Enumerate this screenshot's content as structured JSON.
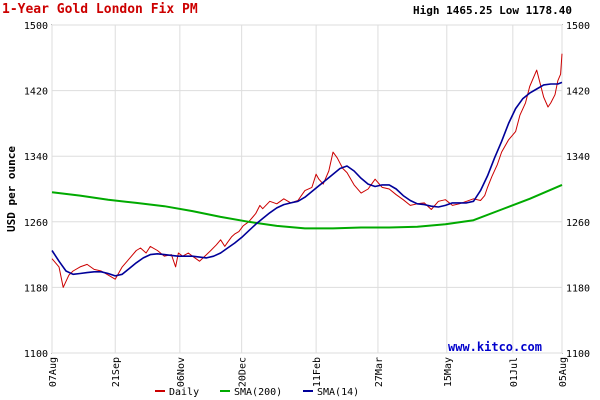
{
  "header": {
    "title": "1-Year Gold London Fix PM",
    "high_low": "High 1465.25 Low 1178.40"
  },
  "watermark": "www.kitco.com",
  "chart_data": {
    "type": "line",
    "title": "1-Year Gold London Fix PM",
    "xlabel": "",
    "ylabel": "USD per ounce",
    "ylim": [
      1100,
      1500
    ],
    "yticks": [
      1100,
      1180,
      1260,
      1340,
      1420,
      1500
    ],
    "x_ticks": [
      "07Aug",
      "21Sep",
      "06Nov",
      "20Dec",
      "11Feb",
      "27Mar",
      "15May",
      "01Jul",
      "05Aug"
    ],
    "x_tick_positions": [
      0,
      45,
      91,
      135,
      188,
      232,
      281,
      328,
      363
    ],
    "x_range": [
      0,
      363
    ],
    "grid": true,
    "legend_position": "bottom",
    "colors": {
      "Daily": "#cc0000",
      "SMA(200)": "#00aa00",
      "SMA(14)": "#000099"
    },
    "series": [
      {
        "name": "Daily",
        "x": [
          0,
          5,
          8,
          12,
          15,
          20,
          25,
          30,
          35,
          40,
          45,
          50,
          55,
          60,
          63,
          67,
          70,
          75,
          80,
          85,
          88,
          90,
          93,
          97,
          100,
          105,
          110,
          113,
          117,
          120,
          123,
          125,
          128,
          130,
          133,
          136,
          140,
          145,
          148,
          150,
          155,
          160,
          165,
          170,
          175,
          180,
          185,
          188,
          190,
          193,
          197,
          200,
          203,
          207,
          210,
          215,
          220,
          225,
          230,
          235,
          240,
          245,
          250,
          255,
          260,
          265,
          270,
          275,
          280,
          285,
          290,
          295,
          300,
          305,
          308,
          310,
          313,
          317,
          320,
          325,
          330,
          333,
          337,
          340,
          345,
          350,
          353,
          355,
          358,
          360,
          362,
          363
        ],
        "values": [
          1215,
          1205,
          1180,
          1195,
          1200,
          1205,
          1208,
          1202,
          1200,
          1195,
          1190,
          1205,
          1215,
          1225,
          1228,
          1222,
          1230,
          1225,
          1218,
          1220,
          1205,
          1222,
          1218,
          1222,
          1218,
          1212,
          1220,
          1225,
          1232,
          1238,
          1230,
          1235,
          1242,
          1245,
          1248,
          1255,
          1260,
          1270,
          1280,
          1276,
          1285,
          1282,
          1288,
          1283,
          1286,
          1298,
          1302,
          1318,
          1312,
          1306,
          1322,
          1345,
          1338,
          1325,
          1320,
          1305,
          1295,
          1300,
          1312,
          1302,
          1300,
          1293,
          1287,
          1280,
          1282,
          1283,
          1275,
          1285,
          1287,
          1280,
          1282,
          1285,
          1288,
          1286,
          1292,
          1302,
          1315,
          1330,
          1345,
          1360,
          1370,
          1390,
          1405,
          1425,
          1445,
          1412,
          1400,
          1405,
          1415,
          1432,
          1440,
          1465
        ]
      },
      {
        "name": "SMA(200)",
        "x": [
          0,
          20,
          40,
          60,
          80,
          100,
          120,
          140,
          160,
          180,
          200,
          220,
          240,
          260,
          280,
          300,
          320,
          340,
          363
        ],
        "values": [
          1296,
          1292,
          1287,
          1283,
          1279,
          1273,
          1266,
          1260,
          1255,
          1252,
          1252,
          1253,
          1253,
          1254,
          1257,
          1262,
          1275,
          1288,
          1305
        ]
      },
      {
        "name": "SMA(14)",
        "x": [
          0,
          5,
          10,
          15,
          20,
          25,
          30,
          35,
          40,
          45,
          50,
          55,
          60,
          65,
          70,
          75,
          80,
          85,
          90,
          95,
          100,
          105,
          110,
          115,
          120,
          125,
          130,
          135,
          140,
          145,
          150,
          155,
          160,
          165,
          170,
          175,
          180,
          185,
          190,
          195,
          200,
          205,
          210,
          215,
          220,
          225,
          230,
          235,
          240,
          245,
          250,
          255,
          260,
          265,
          270,
          275,
          280,
          285,
          290,
          295,
          300,
          305,
          310,
          315,
          320,
          325,
          330,
          335,
          340,
          345,
          350,
          355,
          360,
          363
        ],
        "values": [
          1225,
          1212,
          1200,
          1196,
          1197,
          1198,
          1199,
          1199,
          1197,
          1194,
          1196,
          1203,
          1210,
          1216,
          1220,
          1221,
          1220,
          1219,
          1218,
          1218,
          1218,
          1217,
          1216,
          1218,
          1222,
          1228,
          1234,
          1241,
          1249,
          1257,
          1264,
          1271,
          1277,
          1281,
          1283,
          1285,
          1290,
          1297,
          1304,
          1311,
          1318,
          1325,
          1328,
          1322,
          1313,
          1306,
          1303,
          1305,
          1305,
          1300,
          1292,
          1286,
          1282,
          1281,
          1279,
          1278,
          1280,
          1283,
          1283,
          1283,
          1285,
          1298,
          1316,
          1338,
          1358,
          1380,
          1398,
          1410,
          1417,
          1422,
          1427,
          1428,
          1428,
          1430
        ]
      }
    ]
  }
}
